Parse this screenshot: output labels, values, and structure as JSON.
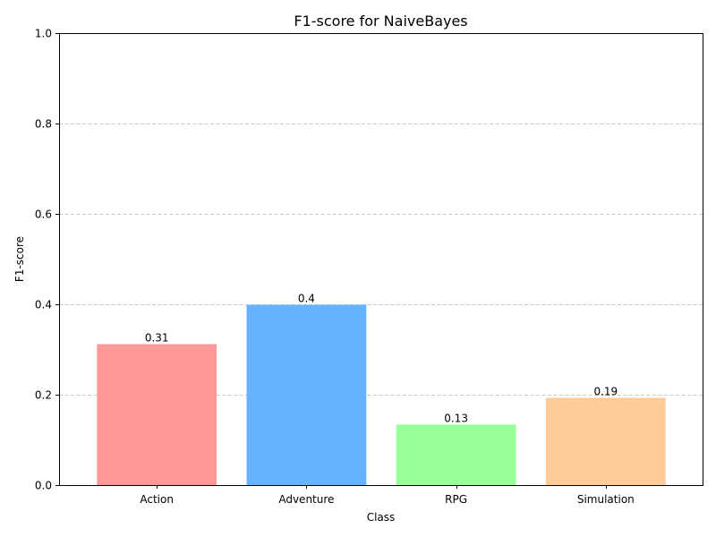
{
  "chart_data": {
    "type": "bar",
    "title": "F1-score for NaiveBayes",
    "xlabel": "Class",
    "ylabel": "F1-score",
    "categories": [
      "Action",
      "Adventure",
      "RPG",
      "Simulation"
    ],
    "values": [
      0.312,
      0.399,
      0.134,
      0.193
    ],
    "value_labels": [
      "0.31",
      "0.4",
      "0.13",
      "0.19"
    ],
    "colors": [
      "#ff9999",
      "#66b3ff",
      "#99ff99",
      "#ffcc99"
    ],
    "ylim": [
      0,
      1
    ],
    "yticks": [
      0,
      0.2,
      0.4,
      0.6,
      0.8,
      1.0
    ],
    "ytick_labels": [
      "0.0",
      "0.2",
      "0.4",
      "0.6",
      "0.8",
      "1.0"
    ],
    "grid": "y-dashed",
    "legend": "none"
  }
}
